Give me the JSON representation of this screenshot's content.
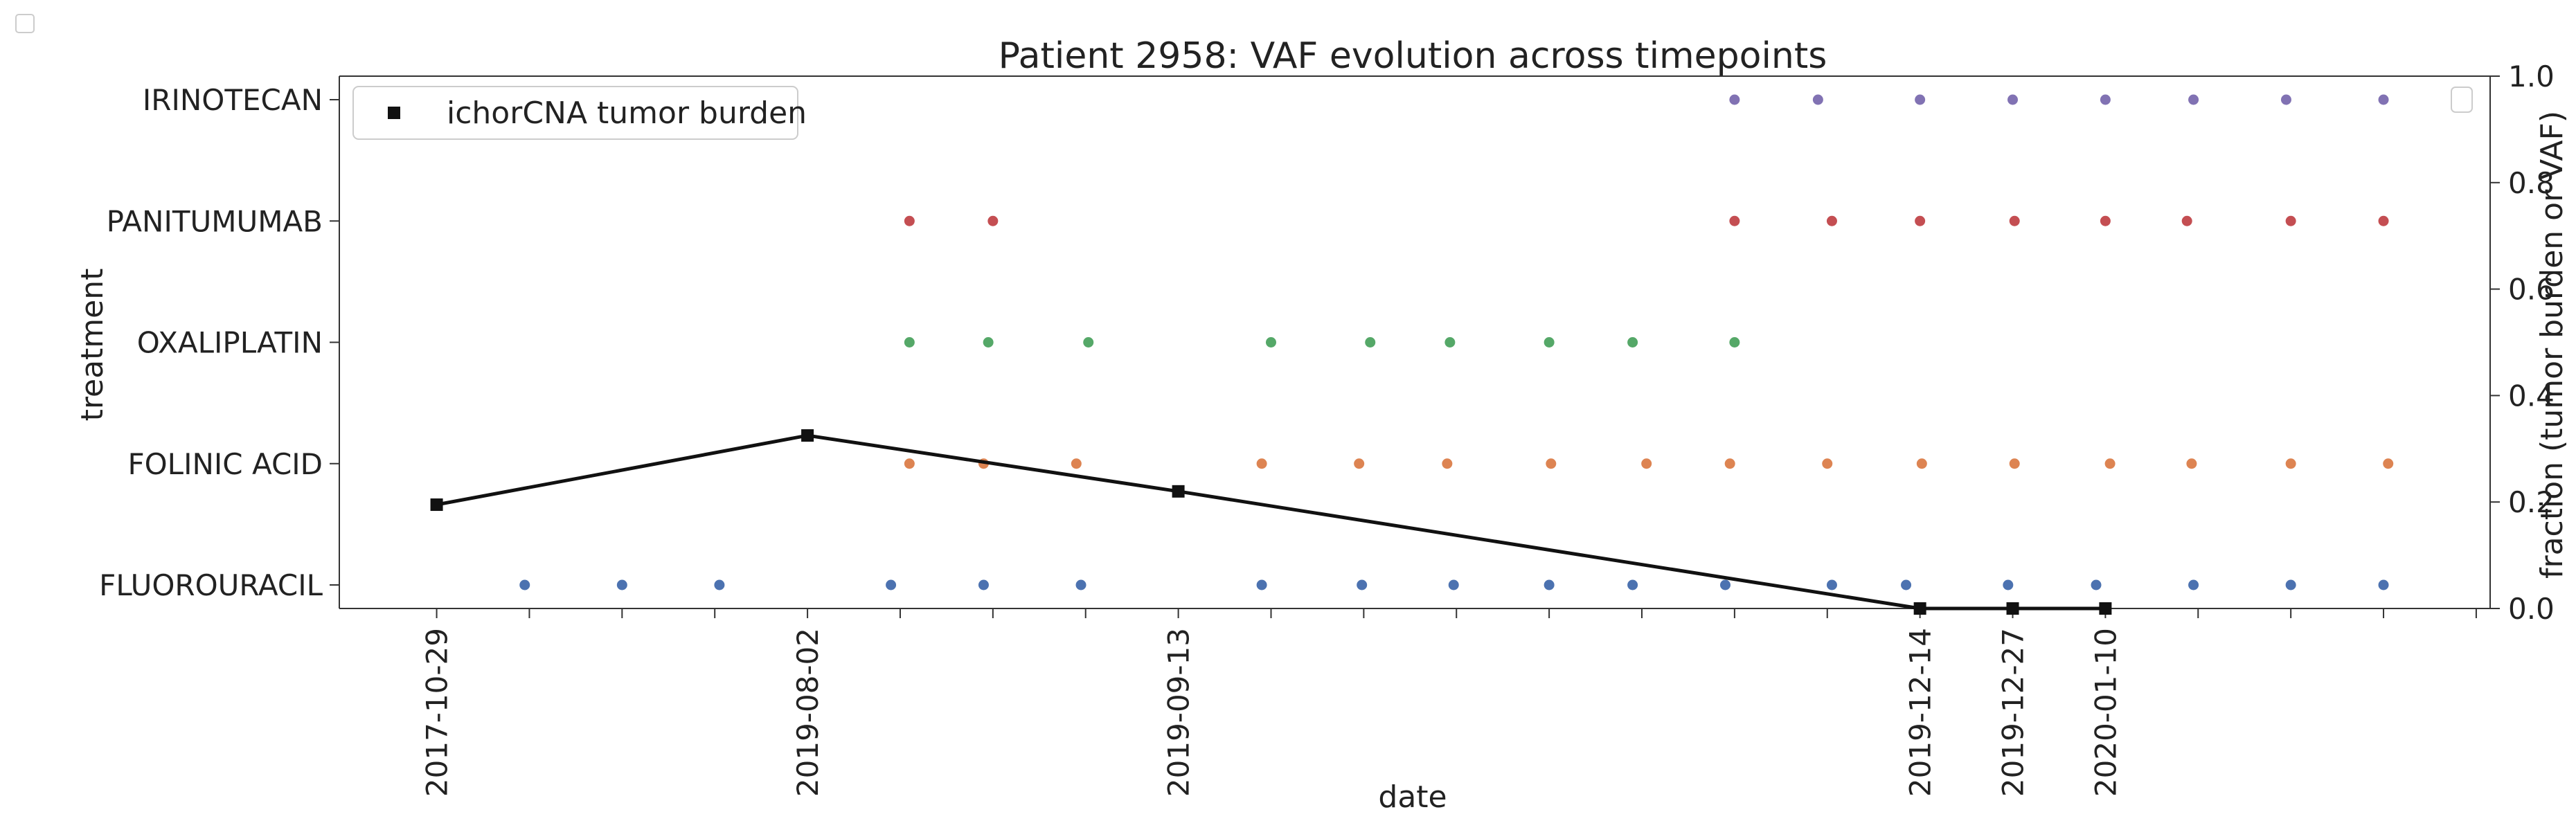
{
  "chart_data": {
    "type": "scatter",
    "title": "Patient 2958: VAF evolution across timepoints",
    "xlabel": "date",
    "ylabel": "treatment",
    "y2label": "fraction (tumor burden or VAF)",
    "y2lim": [
      0,
      1.0
    ],
    "y2ticks": [
      "0.0",
      "0.2",
      "0.4",
      "0.6",
      "0.8",
      "1.0"
    ],
    "x_tick_labels": [
      {
        "label": "2017-10-29",
        "x": 0
      },
      {
        "label": "2019-08-02",
        "x": 4
      },
      {
        "label": "2019-09-13",
        "x": 8
      },
      {
        "label": "2019-12-14",
        "x": 16
      },
      {
        "label": "2019-12-27",
        "x": 17
      },
      {
        "label": "2020-01-10",
        "x": 18
      }
    ],
    "x_minor_ticks": [
      1,
      2,
      3,
      5,
      6,
      7,
      9,
      10,
      11,
      12,
      13,
      14,
      15,
      19,
      20,
      21,
      22
    ],
    "xlim": [
      -1.05,
      22.15
    ],
    "categories": [
      "FLUOROURACIL",
      "FOLINIC ACID",
      "OXALIPLATIN",
      "PANITUMUMAB",
      "IRINOTECAN"
    ],
    "colors": {
      "FLUOROURACIL": "#4c72b0",
      "FOLINIC ACID": "#dd8452",
      "OXALIPLATIN": "#55a868",
      "PANITUMUMAB": "#c44e52",
      "IRINOTECAN": "#8172b3",
      "tumor_burden": "#111111"
    },
    "series": [
      {
        "category": "FLUOROURACIL",
        "x": [
          0.95,
          2.0,
          3.05,
          4.9,
          5.9,
          6.95,
          8.9,
          9.98,
          10.97,
          12.0,
          12.9,
          13.9,
          15.05,
          15.85,
          16.95,
          17.9,
          18.95,
          20.0,
          21.0
        ]
      },
      {
        "category": "FOLINIC ACID",
        "x": [
          5.1,
          5.9,
          6.9,
          8.9,
          9.95,
          10.9,
          12.02,
          13.05,
          13.95,
          15.0,
          16.02,
          17.02,
          18.05,
          18.93,
          20.0,
          21.05
        ]
      },
      {
        "category": "OXALIPLATIN",
        "x": [
          5.1,
          5.95,
          7.03,
          9.0,
          10.07,
          10.93,
          12.0,
          12.9,
          14.0
        ]
      },
      {
        "category": "PANITUMUMAB",
        "x": [
          5.1,
          6.0,
          14.0,
          15.05,
          16.0,
          17.02,
          18.0,
          18.88,
          20.0,
          21.0
        ]
      },
      {
        "category": "IRINOTECAN",
        "x": [
          14.0,
          14.9,
          16.0,
          17.0,
          18.0,
          18.95,
          19.95,
          21.0
        ]
      }
    ],
    "tumor_burden": {
      "name": "ichorCNA tumor burden",
      "x": [
        0,
        4,
        8,
        16,
        17,
        18
      ],
      "values": [
        0.195,
        0.325,
        0.22,
        0.0,
        0.0,
        0.0
      ]
    },
    "legend_placement": "top-left"
  }
}
